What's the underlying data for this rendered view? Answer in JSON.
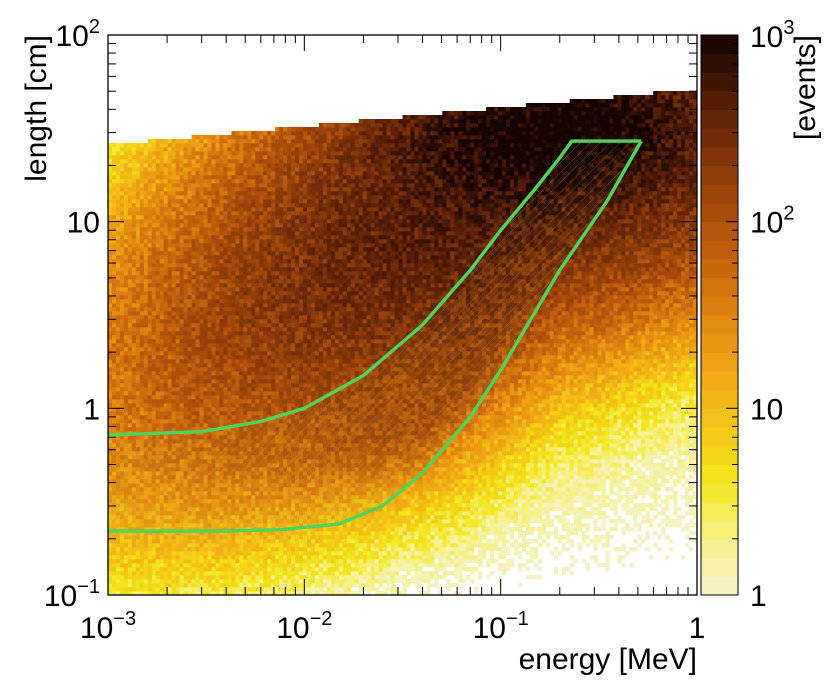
{
  "chart_data": {
    "type": "heatmap",
    "title": "",
    "xlabel": "energy [MeV]",
    "ylabel": "length [cm]",
    "xscale": "log",
    "yscale": "log",
    "xlim": [
      0.001,
      1
    ],
    "ylim": [
      0.1,
      100
    ],
    "x_ticks": [
      {
        "base": "10",
        "exp": "−3",
        "value": 0.001
      },
      {
        "base": "10",
        "exp": "−2",
        "value": 0.01
      },
      {
        "base": "10",
        "exp": "−1",
        "value": 0.1
      },
      {
        "base": "1",
        "exp": "",
        "value": 1
      }
    ],
    "y_ticks": [
      {
        "base": "10",
        "exp": "−1",
        "value": 0.1
      },
      {
        "base": "1",
        "exp": "",
        "value": 1
      },
      {
        "base": "10",
        "exp": "",
        "value": 10
      },
      {
        "base": "10",
        "exp": "2",
        "value": 100
      }
    ],
    "colorbar": {
      "label": "[events]",
      "scale": "log",
      "zlim": [
        1,
        1000
      ],
      "ticks": [
        {
          "base": "1",
          "exp": "",
          "value": 1
        },
        {
          "base": "10",
          "exp": "",
          "value": 10
        },
        {
          "base": "10",
          "exp": "2",
          "value": 100
        },
        {
          "base": "10",
          "exp": "3",
          "value": 1000
        }
      ],
      "colors": [
        "#f6f2cd",
        "#f5f18a",
        "#f3e61a",
        "#f3c617",
        "#f0a514",
        "#e08410",
        "#c4620c",
        "#a3480a",
        "#7a3108",
        "#4c1906",
        "#140302"
      ]
    },
    "populations": [
      {
        "name": "main band",
        "x_center": 0.15,
        "y_center": 30,
        "peak_events": 1000
      },
      {
        "name": "lower band",
        "x_center": 0.04,
        "y_center": 0.8,
        "peak_events": 60
      }
    ],
    "selection_region": {
      "color": "#4fd35a",
      "hatched": true,
      "upper_curve": [
        [
          0.001,
          0.72
        ],
        [
          0.003,
          0.75
        ],
        [
          0.006,
          0.85
        ],
        [
          0.01,
          1.0
        ],
        [
          0.02,
          1.5
        ],
        [
          0.04,
          2.8
        ],
        [
          0.07,
          5.5
        ],
        [
          0.1,
          9.0
        ],
        [
          0.15,
          15
        ],
        [
          0.2,
          22
        ],
        [
          0.23,
          27
        ]
      ],
      "top_edge": [
        [
          0.23,
          27
        ],
        [
          0.52,
          27
        ]
      ],
      "lower_curve": [
        [
          0.001,
          0.22
        ],
        [
          0.004,
          0.22
        ],
        [
          0.008,
          0.225
        ],
        [
          0.015,
          0.24
        ],
        [
          0.025,
          0.3
        ],
        [
          0.04,
          0.45
        ],
        [
          0.07,
          0.9
        ],
        [
          0.1,
          1.6
        ],
        [
          0.2,
          5.5
        ],
        [
          0.35,
          13
        ],
        [
          0.52,
          27
        ]
      ]
    }
  }
}
